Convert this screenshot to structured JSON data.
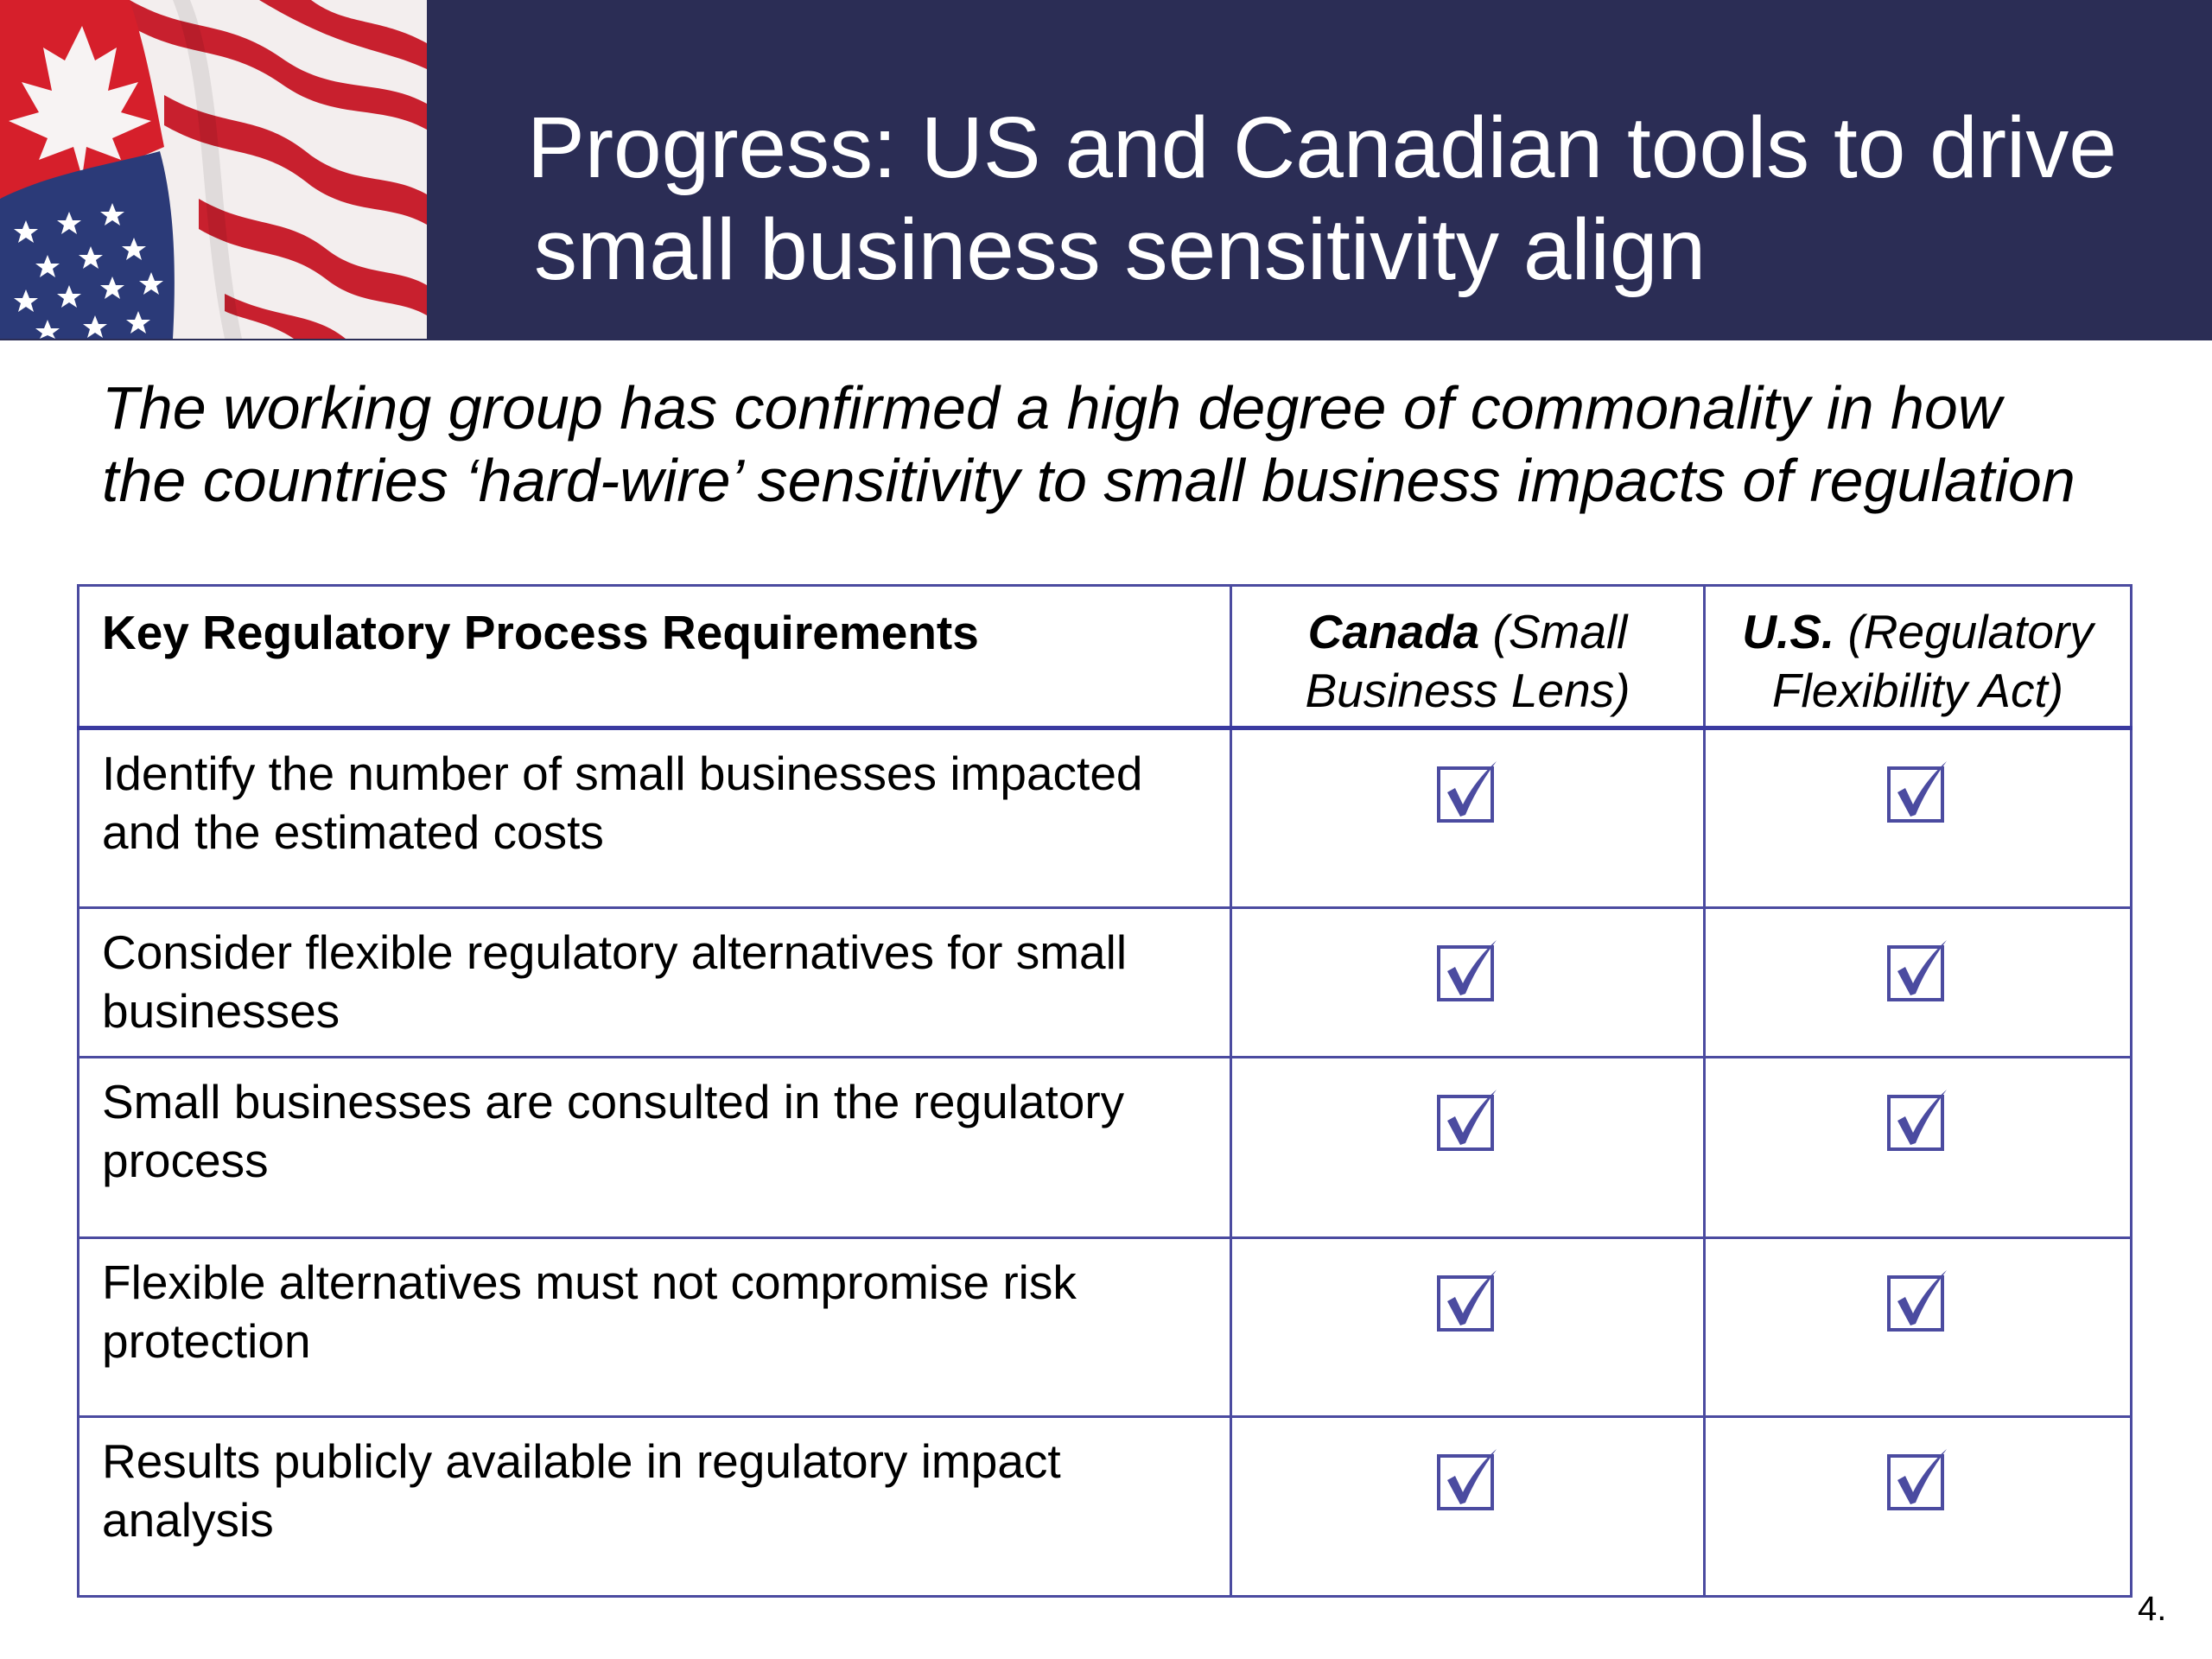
{
  "header": {
    "background_color": "#2b2d55",
    "image_icon": "us-canada-flags-image",
    "title_line1": "Progress: US and Canadian tools to drive",
    "title_line2": "small business sensitivity align"
  },
  "subtitle": {
    "line1": "The working group has confirmed a high degree of commonality in how",
    "line2": "the countries ‘hard-wire’ sensitivity to small business impacts of regulation"
  },
  "table": {
    "border_color": "#4b4ba0",
    "header": {
      "requirements": "Key Regulatory Process Requirements",
      "canada_name": "Canada",
      "canada_detail_line1": " (Small",
      "canada_detail_line2": "Business Lens)",
      "us_name": "U.S.",
      "us_detail_line1": " (Regulatory",
      "us_detail_line2": "Flexibility Act)"
    },
    "check_icon": "checked-box-icon",
    "check_color": "#4b4ba0",
    "rows": [
      {
        "line1": "Identify the number of small businesses impacted",
        "line2": "and the estimated costs",
        "canada": true,
        "us": true
      },
      {
        "line1": "Consider flexible regulatory alternatives for small",
        "line2": "businesses",
        "canada": true,
        "us": true
      },
      {
        "line1": "Small businesses are consulted in the regulatory",
        "line2": "process",
        "canada": true,
        "us": true
      },
      {
        "line1": "Flexible alternatives must not compromise risk",
        "line2": "protection",
        "canada": true,
        "us": true
      },
      {
        "line1": "Results publicly available in regulatory impact",
        "line2": "analysis",
        "canada": true,
        "us": true
      }
    ]
  },
  "page_number": "4."
}
